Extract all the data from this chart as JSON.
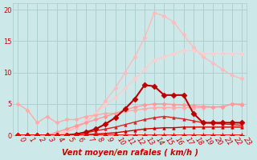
{
  "bg_color": "#cce8e8",
  "grid_color": "#aacccc",
  "xlabel": "Vent moyen/en rafales ( km/h )",
  "xlim": [
    -0.5,
    23.5
  ],
  "ylim": [
    0,
    21
  ],
  "yticks": [
    0,
    5,
    10,
    15,
    20
  ],
  "xticks": [
    0,
    1,
    2,
    3,
    4,
    5,
    6,
    7,
    8,
    9,
    10,
    11,
    12,
    13,
    14,
    15,
    16,
    17,
    18,
    19,
    20,
    21,
    22,
    23
  ],
  "series": [
    {
      "x": [
        0,
        1,
        2,
        3,
        4,
        5,
        6,
        7,
        8,
        9,
        10,
        11,
        12,
        13,
        14,
        15,
        16,
        17,
        18,
        19,
        20,
        21,
        22,
        23
      ],
      "y": [
        0,
        0,
        0,
        0,
        0,
        0,
        0,
        0,
        0,
        0,
        0,
        0,
        0,
        0,
        0,
        0,
        0,
        0,
        0,
        0,
        0,
        0,
        0,
        0
      ],
      "color": "#ff0000",
      "lw": 1.2,
      "marker": "+",
      "ms": 4,
      "mew": 1.0,
      "zorder": 6
    },
    {
      "x": [
        0,
        1,
        2,
        3,
        4,
        5,
        6,
        7,
        8,
        9,
        10,
        11,
        12,
        13,
        14,
        15,
        16,
        17,
        18,
        19,
        20,
        21,
        22,
        23
      ],
      "y": [
        0,
        0,
        0,
        0,
        0,
        0,
        0,
        0.1,
        0.2,
        0.3,
        0.4,
        0.6,
        0.8,
        1.0,
        1.1,
        1.2,
        1.2,
        1.3,
        1.3,
        1.3,
        1.3,
        1.3,
        1.3,
        1.3
      ],
      "color": "#cc0000",
      "lw": 1.0,
      "marker": "^",
      "ms": 2.5,
      "mew": 0.5,
      "zorder": 5
    },
    {
      "x": [
        0,
        1,
        2,
        3,
        4,
        5,
        6,
        7,
        8,
        9,
        10,
        11,
        12,
        13,
        14,
        15,
        16,
        17,
        18,
        19,
        20,
        21,
        22,
        23
      ],
      "y": [
        0,
        0,
        0,
        0,
        0,
        0.1,
        0.2,
        0.4,
        0.7,
        1.0,
        1.3,
        1.7,
        2.1,
        2.5,
        2.8,
        3.0,
        2.8,
        2.6,
        2.3,
        2.0,
        1.9,
        1.8,
        1.7,
        1.6
      ],
      "color": "#dd2222",
      "lw": 1.0,
      "marker": "^",
      "ms": 2.5,
      "mew": 0.5,
      "zorder": 5
    },
    {
      "x": [
        0,
        1,
        2,
        3,
        4,
        5,
        6,
        7,
        8,
        9,
        10,
        11,
        12,
        13,
        14,
        15,
        16,
        17,
        18,
        19,
        20,
        21,
        22,
        23
      ],
      "y": [
        0,
        0,
        0,
        0,
        0,
        0,
        0.2,
        0.5,
        1.0,
        1.8,
        2.8,
        4.2,
        5.8,
        8.0,
        7.8,
        6.4,
        6.4,
        6.4,
        3.5,
        2.0,
        2.0,
        2.0,
        2.0,
        2.0
      ],
      "color": "#bb0000",
      "lw": 1.5,
      "marker": "D",
      "ms": 3.5,
      "mew": 0.5,
      "zorder": 5
    },
    {
      "x": [
        0,
        1,
        2,
        3,
        4,
        5,
        6,
        7,
        8,
        9,
        10,
        11,
        12,
        13,
        14,
        15,
        16,
        17,
        18,
        19,
        20,
        21,
        22,
        23
      ],
      "y": [
        5,
        4,
        2,
        3,
        2,
        2.5,
        2.5,
        3.0,
        3.2,
        3.5,
        3.5,
        3.8,
        4.0,
        4.2,
        4.4,
        4.4,
        4.4,
        4.4,
        4.4,
        4.4,
        4.5,
        4.6,
        5.0,
        5.0
      ],
      "color": "#ffaaaa",
      "lw": 1.0,
      "marker": "D",
      "ms": 2.5,
      "mew": 0.5,
      "zorder": 3
    },
    {
      "x": [
        0,
        1,
        2,
        3,
        4,
        5,
        6,
        7,
        8,
        9,
        10,
        11,
        12,
        13,
        14,
        15,
        16,
        17,
        18,
        19,
        20,
        21,
        22,
        23
      ],
      "y": [
        0,
        0,
        0,
        0,
        0.5,
        1.0,
        1.5,
        2.0,
        2.5,
        3.0,
        3.5,
        4.0,
        4.5,
        4.8,
        5.0,
        5.0,
        4.9,
        4.8,
        4.7,
        4.6,
        4.5,
        4.5,
        5.0,
        4.8
      ],
      "color": "#ff9999",
      "lw": 1.0,
      "marker": "D",
      "ms": 2.5,
      "mew": 0.5,
      "zorder": 3
    },
    {
      "x": [
        0,
        1,
        2,
        3,
        4,
        5,
        6,
        7,
        8,
        9,
        10,
        11,
        12,
        13,
        14,
        15,
        16,
        17,
        18,
        19,
        20,
        21,
        22,
        23
      ],
      "y": [
        0,
        0,
        0,
        0,
        0,
        0.5,
        1.2,
        2.0,
        3.5,
        5.5,
        7.5,
        10.0,
        12.5,
        15.5,
        19.5,
        19.0,
        18.0,
        16.0,
        14.0,
        12.5,
        11.5,
        10.5,
        9.5,
        9.0
      ],
      "color": "#ffbbbb",
      "lw": 1.0,
      "marker": "D",
      "ms": 2.5,
      "mew": 0.5,
      "zorder": 2
    },
    {
      "x": [
        0,
        1,
        2,
        3,
        4,
        5,
        6,
        7,
        8,
        9,
        10,
        11,
        12,
        13,
        14,
        15,
        16,
        17,
        18,
        19,
        20,
        21,
        22,
        23
      ],
      "y": [
        0,
        0,
        0,
        0,
        0.3,
        0.7,
        1.5,
        2.5,
        3.5,
        4.8,
        6.0,
        7.5,
        9.0,
        10.5,
        12.0,
        12.5,
        13.0,
        13.5,
        13.5,
        13.0,
        13.0,
        13.0,
        13.0,
        13.0
      ],
      "color": "#ffcccc",
      "lw": 1.0,
      "marker": "D",
      "ms": 2.5,
      "mew": 0.5,
      "zorder": 2
    }
  ],
  "tick_label_color": "#cc0000",
  "xlabel_color": "#cc0000",
  "xlabel_fontsize": 7,
  "tick_fontsize": 6,
  "xtick_rotation": -55
}
